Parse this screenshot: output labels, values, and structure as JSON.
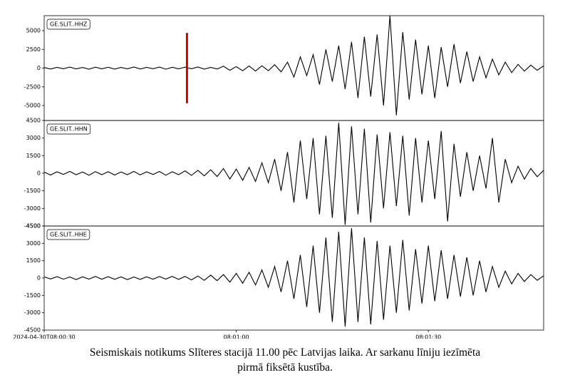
{
  "chart_data": [
    {
      "type": "line",
      "legend_corner": "upper left",
      "color": "#000000",
      "series": [
        {
          "name": "GE.SLIT..HHZ",
          "color": "#000000",
          "values": [
            80,
            -120,
            100,
            -90,
            130,
            -110,
            90,
            -140,
            120,
            -100,
            110,
            -130,
            90,
            -100,
            140,
            -120,
            100,
            -90,
            130,
            -150,
            110,
            -100,
            120,
            -90,
            140,
            -130,
            100,
            -120,
            250,
            -300,
            200,
            -350,
            280,
            -400,
            300,
            -350,
            450,
            -500,
            800,
            -1200,
            1500,
            -1000,
            1800,
            -2200,
            2500,
            -1800,
            3000,
            -2800,
            3500,
            -4000,
            4200,
            -3800,
            4500,
            -5000,
            7000,
            -6300,
            4800,
            -4200,
            3800,
            -3500,
            3000,
            -4000,
            2800,
            -2500,
            3200,
            -2000,
            2200,
            -1800,
            1500,
            -1300,
            1200,
            -900,
            800,
            -600,
            500,
            -400,
            400,
            -300,
            300
          ]
        }
      ],
      "x": [
        0,
        1,
        2,
        3,
        4,
        5,
        6,
        7,
        8,
        9,
        10,
        11,
        12,
        13,
        14,
        15,
        16,
        17,
        18,
        19,
        20,
        21,
        22,
        23,
        24,
        25,
        26,
        27,
        28,
        29,
        30,
        31,
        32,
        33,
        34,
        35,
        36,
        37,
        38,
        39,
        40,
        41,
        42,
        43,
        44,
        45,
        46,
        47,
        48,
        49,
        50,
        51,
        52,
        53,
        54,
        55,
        56,
        57,
        58,
        59,
        60,
        61,
        62,
        63,
        64,
        65,
        66,
        67,
        68,
        69,
        70,
        71,
        72,
        73,
        74,
        75,
        76,
        77,
        78
      ],
      "xlim": [
        0,
        78
      ],
      "ylim": [
        -7000,
        7000
      ],
      "yticks": [
        -5000,
        -2500,
        0,
        2500,
        5000
      ],
      "markers": [
        {
          "x": 22.3,
          "y": [
            -4700,
            4700
          ],
          "color": "#d40000"
        }
      ]
    },
    {
      "type": "line",
      "legend_corner": "upper left",
      "color": "#000000",
      "series": [
        {
          "name": "GE.SLIT..HHN",
          "color": "#000000",
          "values": [
            100,
            -150,
            120,
            -100,
            160,
            -130,
            110,
            -170,
            140,
            -120,
            130,
            -150,
            110,
            -120,
            160,
            -140,
            120,
            -110,
            150,
            -170,
            130,
            -120,
            200,
            -180,
            250,
            -220,
            300,
            -280,
            400,
            -500,
            350,
            -600,
            500,
            -700,
            900,
            -800,
            1200,
            -1500,
            1800,
            -2500,
            2800,
            -2200,
            3000,
            -3500,
            3200,
            -3800,
            4300,
            -4400,
            4000,
            -3500,
            3800,
            -4200,
            3300,
            -3000,
            3500,
            -2800,
            3200,
            -3600,
            3000,
            -2500,
            2800,
            -2200,
            3600,
            -4100,
            2500,
            -2000,
            1800,
            -1500,
            1500,
            -1300,
            3000,
            -2500,
            1200,
            -800,
            600,
            -500,
            400,
            -300,
            250
          ]
        }
      ],
      "x": [
        0,
        1,
        2,
        3,
        4,
        5,
        6,
        7,
        8,
        9,
        10,
        11,
        12,
        13,
        14,
        15,
        16,
        17,
        18,
        19,
        20,
        21,
        22,
        23,
        24,
        25,
        26,
        27,
        28,
        29,
        30,
        31,
        32,
        33,
        34,
        35,
        36,
        37,
        38,
        39,
        40,
        41,
        42,
        43,
        44,
        45,
        46,
        47,
        48,
        49,
        50,
        51,
        52,
        53,
        54,
        55,
        56,
        57,
        58,
        59,
        60,
        61,
        62,
        63,
        64,
        65,
        66,
        67,
        68,
        69,
        70,
        71,
        72,
        73,
        74,
        75,
        76,
        77,
        78
      ],
      "xlim": [
        0,
        78
      ],
      "ylim": [
        -4500,
        4500
      ],
      "yticks": [
        -4500,
        -3000,
        -1500,
        0,
        1500,
        3000,
        4500
      ]
    },
    {
      "type": "line",
      "legend_corner": "upper left",
      "color": "#000000",
      "series": [
        {
          "name": "GE.SLIT..HHE",
          "color": "#000000",
          "values": [
            100,
            -80,
            120,
            -100,
            90,
            -130,
            110,
            -90,
            140,
            -100,
            120,
            -110,
            100,
            -130,
            90,
            -120,
            110,
            -100,
            130,
            -90,
            150,
            -120,
            140,
            -160,
            180,
            -200,
            250,
            -220,
            300,
            -350,
            400,
            -450,
            500,
            -600,
            700,
            -800,
            1000,
            -1200,
            1500,
            -1800,
            2000,
            -2500,
            2800,
            -3000,
            3500,
            -3800,
            4000,
            -4200,
            4300,
            -3800,
            3500,
            -4000,
            3200,
            -3600,
            2800,
            -3000,
            3300,
            -2800,
            2500,
            -2200,
            2800,
            -2000,
            2400,
            -1800,
            2000,
            -1600,
            1800,
            -1500,
            1500,
            -1200,
            1000,
            -800,
            600,
            -500,
            400,
            -300,
            300,
            -200,
            200
          ]
        }
      ],
      "x": [
        0,
        1,
        2,
        3,
        4,
        5,
        6,
        7,
        8,
        9,
        10,
        11,
        12,
        13,
        14,
        15,
        16,
        17,
        18,
        19,
        20,
        21,
        22,
        23,
        24,
        25,
        26,
        27,
        28,
        29,
        30,
        31,
        32,
        33,
        34,
        35,
        36,
        37,
        38,
        39,
        40,
        41,
        42,
        43,
        44,
        45,
        46,
        47,
        48,
        49,
        50,
        51,
        52,
        53,
        54,
        55,
        56,
        57,
        58,
        59,
        60,
        61,
        62,
        63,
        64,
        65,
        66,
        67,
        68,
        69,
        70,
        71,
        72,
        73,
        74,
        75,
        76,
        77,
        78
      ],
      "xlim": [
        0,
        78
      ],
      "ylim": [
        -4500,
        4500
      ],
      "yticks": [
        -4500,
        -3000,
        -1500,
        0,
        1500,
        3000,
        4500
      ],
      "xticks": [
        {
          "value": 0,
          "label": "2024-04-30T08:00:30"
        },
        {
          "value": 30,
          "label": "08:01:00"
        },
        {
          "value": 60,
          "label": "08:01:30"
        }
      ]
    }
  ],
  "caption": [
    "Seismiskais notikums Slīteres stacijā 11.00 pēc Latvijas laika. Ar sarkanu līniju iezīmēta",
    "pirmā fiksētā kustība."
  ]
}
